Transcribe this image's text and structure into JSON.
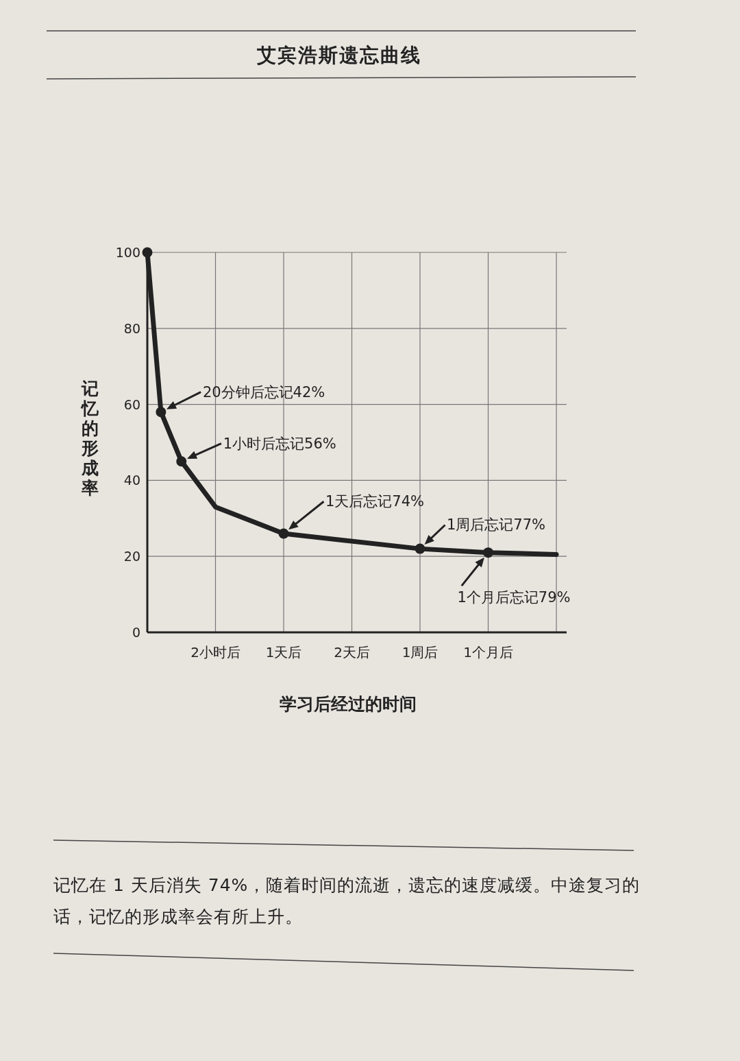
{
  "chart_data": {
    "type": "line",
    "title": "艾宾浩斯遗忘曲线",
    "xlabel": "学习后经过的时间",
    "ylabel": "记忆的形成率",
    "categories": [
      null,
      null,
      null,
      null,
      null,
      null,
      null,
      null,
      null,
      null,
      "2小时后",
      null,
      null,
      null,
      null,
      null,
      null,
      null,
      null,
      null,
      "1天后",
      null,
      null,
      null,
      null,
      null,
      null,
      null,
      null,
      null,
      "2天后",
      null,
      null,
      null,
      null,
      null,
      null,
      null,
      null,
      null,
      "1周后",
      null,
      null,
      null,
      null,
      null,
      null,
      null,
      null,
      null,
      "1个月后",
      null,
      null,
      null,
      null,
      null,
      null,
      null,
      null,
      null,
      null
    ],
    "ylim": [
      0,
      100
    ],
    "yticks": [
      0,
      20,
      40,
      60,
      80,
      100
    ],
    "grid": true,
    "series": [
      {
        "color": "#222222",
        "marker": "none",
        "values": [
          100,
          null,
          58,
          null,
          null,
          45,
          null,
          null,
          null,
          null,
          33,
          null,
          null,
          null,
          null,
          null,
          null,
          null,
          null,
          null,
          26,
          null,
          null,
          null,
          null,
          null,
          null,
          null,
          null,
          null,
          null,
          null,
          null,
          null,
          null,
          null,
          null,
          null,
          null,
          null,
          22,
          null,
          null,
          null,
          null,
          null,
          null,
          null,
          null,
          null,
          21,
          null,
          null,
          null,
          null,
          null,
          null,
          null,
          null,
          null,
          20.5
        ]
      },
      {
        "type": "scatter",
        "color": "#222222",
        "marker": "circle",
        "values": [
          100,
          null,
          58,
          null,
          null,
          45,
          null,
          null,
          null,
          null,
          null,
          null,
          null,
          null,
          null,
          null,
          null,
          null,
          null,
          null,
          26,
          null,
          null,
          null,
          null,
          null,
          null,
          null,
          null,
          null,
          null,
          null,
          null,
          null,
          null,
          null,
          null,
          null,
          null,
          null,
          22,
          null,
          null,
          null,
          null,
          null,
          null,
          null,
          null,
          null,
          21,
          null,
          null,
          null,
          null,
          null,
          null,
          null,
          null,
          null,
          null
        ]
      }
    ],
    "annotations": [
      "20分钟后忘记42%",
      "1小时后忘记56%",
      "1天后忘记74%",
      "1周后忘记77%",
      "1个月后忘记79%",
      "记忆在 1 天后消失 74%，随着时间的流逝，遗忘的速度减缓。中途复习的话，记忆的形成率会有所上升。"
    ]
  }
}
